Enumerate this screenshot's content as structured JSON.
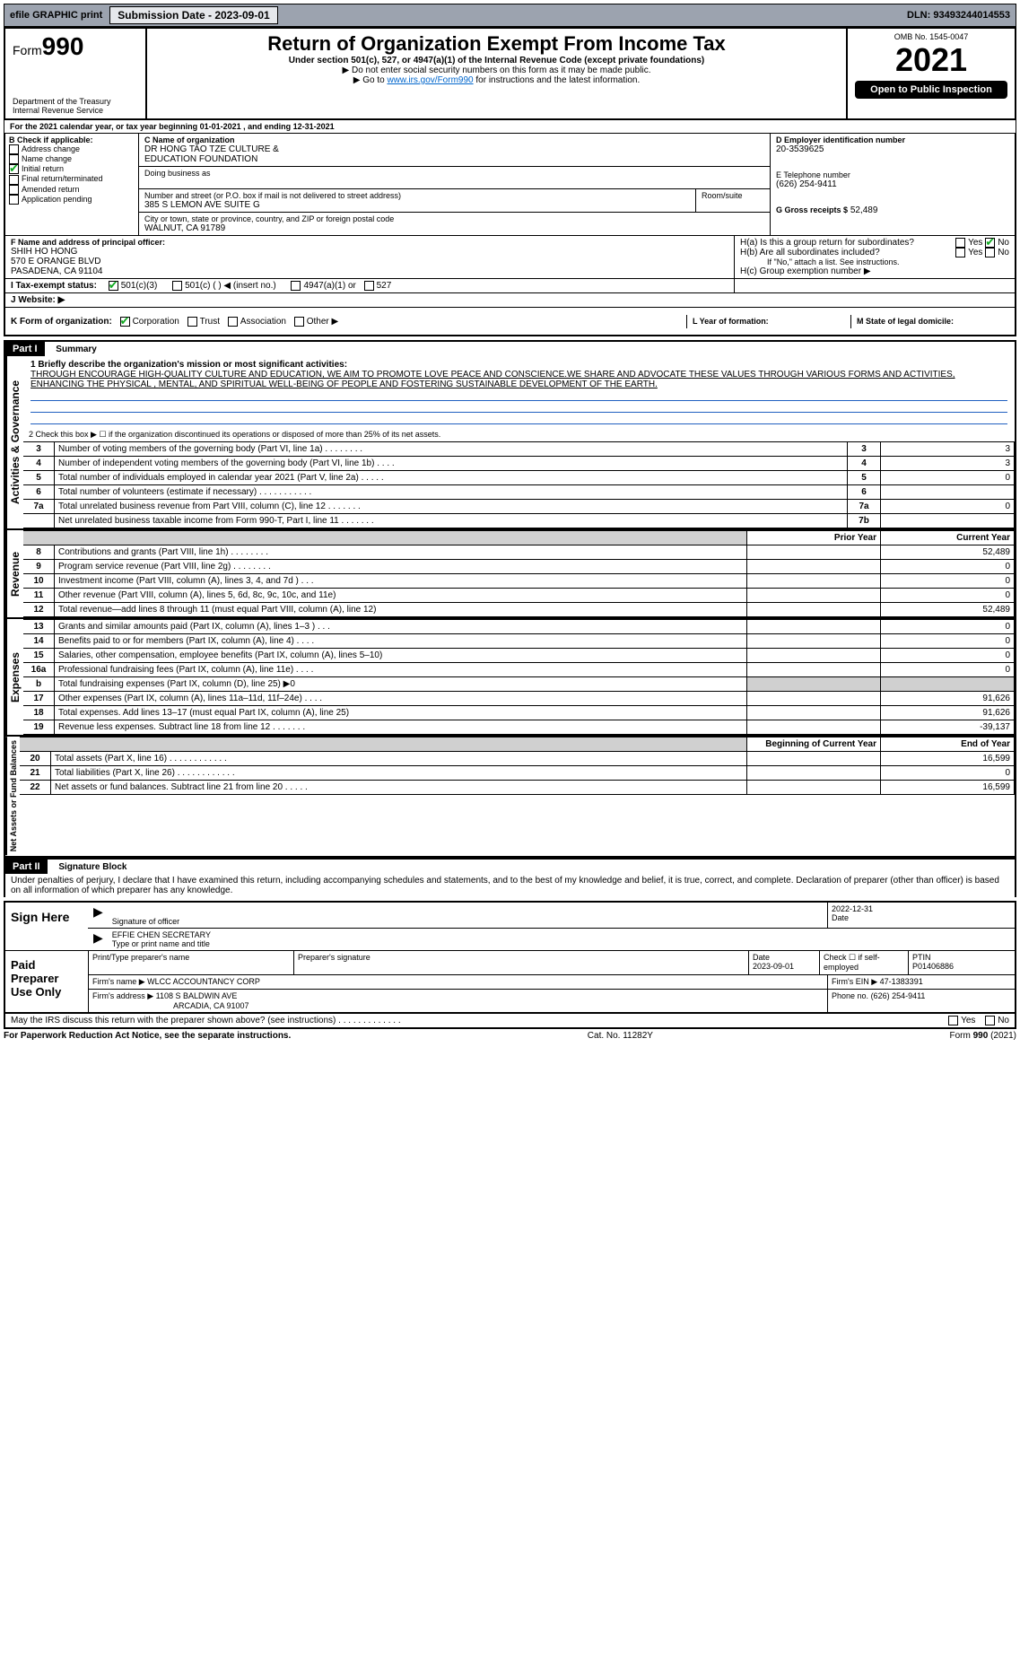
{
  "topbar": {
    "efile": "efile GRAPHIC print",
    "submission_label": "Submission Date - 2023-09-01",
    "dln": "DLN: 93493244014553"
  },
  "header": {
    "form_label": "Form",
    "form_no": "990",
    "dept1": "Department of the Treasury",
    "dept2": "Internal Revenue Service",
    "title": "Return of Organization Exempt From Income Tax",
    "sub1": "Under section 501(c), 527, or 4947(a)(1) of the Internal Revenue Code (except private foundations)",
    "sub2": "▶ Do not enter social security numbers on this form as it may be made public.",
    "sub3_pre": "▶ Go to ",
    "sub3_link": "www.irs.gov/Form990",
    "sub3_post": " for instructions and the latest information.",
    "omb": "OMB No. 1545-0047",
    "year": "2021",
    "open": "Open to Public Inspection"
  },
  "periodA": "For the 2021 calendar year, or tax year beginning 01-01-2021    , and ending 12-31-2021",
  "boxB": {
    "label": "B Check if applicable:",
    "items": [
      "Address change",
      "Name change",
      "Initial return",
      "Final return/terminated",
      "Amended return",
      "Application pending"
    ],
    "checked_index": 2
  },
  "boxC": {
    "name_label": "C Name of organization",
    "name1": "DR HONG TAO TZE CULTURE &",
    "name2": "EDUCATION FOUNDATION",
    "dba_label": "Doing business as",
    "addr_label": "Number and street (or P.O. box if mail is not delivered to street address)",
    "room_label": "Room/suite",
    "addr": "385 S LEMON AVE SUITE G",
    "city_label": "City or town, state or province, country, and ZIP or foreign postal code",
    "city": "WALNUT, CA  91789"
  },
  "boxD": {
    "label": "D Employer identification number",
    "value": "20-3539625"
  },
  "boxE": {
    "label": "E Telephone number",
    "value": "(626) 254-9411"
  },
  "boxG": {
    "label": "G Gross receipts $",
    "value": "52,489"
  },
  "boxF": {
    "label": "F  Name and address of principal officer:",
    "line1": "SHIH HO HONG",
    "line2": "570 E ORANGE BLVD",
    "line3": "PASADENA, CA  91104"
  },
  "boxH": {
    "a_label": "H(a)  Is this a group return for subordinates?",
    "b_label": "H(b)  Are all subordinates included?",
    "b_note": "If \"No,\" attach a list. See instructions.",
    "c_label": "H(c)  Group exemption number ▶",
    "yes": "Yes",
    "no": "No"
  },
  "boxI": {
    "label": "I   Tax-exempt status:",
    "opts": [
      "501(c)(3)",
      "501(c) (  ) ◀ (insert no.)",
      "4947(a)(1) or",
      "527"
    ]
  },
  "boxJ": {
    "label": "J   Website: ▶"
  },
  "boxK": {
    "label": "K Form of organization:",
    "opts": [
      "Corporation",
      "Trust",
      "Association",
      "Other ▶"
    ]
  },
  "boxL": {
    "label": "L Year of formation:"
  },
  "boxM": {
    "label": "M State of legal domicile:"
  },
  "part1": {
    "header": "Part I",
    "title": "Summary",
    "line1_label": "1  Briefly describe the organization's mission or most significant activities:",
    "mission": "THROUGH ENCOURAGE HIGH-QUALITY CULTURE AND EDUCATION, WE AIM TO PROMOTE LOVE PEACE AND CONSCIENCE.WE SHARE AND ADVOCATE THESE VALUES THROUGH VARIOUS FORMS AND ACTIVITIES, ENHANCING THE PHYSICAL , MENTAL, AND SPIRITUAL WELL-BEING OF PEOPLE AND FOSTERING SUSTAINABLE DEVELOPMENT OF THE EARTH.",
    "line2": "2   Check this box ▶ ☐  if the organization discontinued its operations or disposed of more than 25% of its net assets.",
    "govlabel": "Activities & Governance",
    "rows_gov": [
      {
        "n": "3",
        "t": "Number of voting members of the governing body (Part VI, line 1a)   .    .    .    .    .    .    .    .",
        "box": "3",
        "v": "3"
      },
      {
        "n": "4",
        "t": "Number of independent voting members of the governing body (Part VI, line 1b)    .    .    .    .",
        "box": "4",
        "v": "3"
      },
      {
        "n": "5",
        "t": "Total number of individuals employed in calendar year 2021 (Part V, line 2a)   .    .    .    .    .",
        "box": "5",
        "v": "0"
      },
      {
        "n": "6",
        "t": "Total number of volunteers (estimate if necessary)    .    .    .    .    .    .    .    .    .    .    .",
        "box": "6",
        "v": ""
      },
      {
        "n": "7a",
        "t": "Total unrelated business revenue from Part VIII, column (C), line 12   .    .    .    .    .    .    .",
        "box": "7a",
        "v": "0"
      },
      {
        "n": "",
        "t": "Net unrelated business taxable income from Form 990-T, Part I, line 11   .    .    .    .    .    .    .",
        "box": "7b",
        "v": ""
      }
    ],
    "col_prior": "Prior Year",
    "col_current": "Current Year",
    "revlabel": "Revenue",
    "rows_rev": [
      {
        "n": "8",
        "t": "Contributions and grants (Part VIII, line 1h)   .    .    .    .    .    .    .    .",
        "p": "",
        "c": "52,489"
      },
      {
        "n": "9",
        "t": "Program service revenue (Part VIII, line 2g)   .    .    .    .    .    .    .    .",
        "p": "",
        "c": "0"
      },
      {
        "n": "10",
        "t": "Investment income (Part VIII, column (A), lines 3, 4, and 7d )    .    .    .",
        "p": "",
        "c": "0"
      },
      {
        "n": "11",
        "t": "Other revenue (Part VIII, column (A), lines 5, 6d, 8c, 9c, 10c, and 11e)",
        "p": "",
        "c": "0"
      },
      {
        "n": "12",
        "t": "Total revenue—add lines 8 through 11 (must equal Part VIII, column (A), line 12)",
        "p": "",
        "c": "52,489"
      }
    ],
    "explabel": "Expenses",
    "rows_exp": [
      {
        "n": "13",
        "t": "Grants and similar amounts paid (Part IX, column (A), lines 1–3 )   .    .    .",
        "p": "",
        "c": "0"
      },
      {
        "n": "14",
        "t": "Benefits paid to or for members (Part IX, column (A), line 4)   .    .    .    .",
        "p": "",
        "c": "0"
      },
      {
        "n": "15",
        "t": "Salaries, other compensation, employee benefits (Part IX, column (A), lines 5–10)",
        "p": "",
        "c": "0"
      },
      {
        "n": "16a",
        "t": "Professional fundraising fees (Part IX, column (A), line 11e)    .    .    .    .",
        "p": "",
        "c": "0"
      },
      {
        "n": "b",
        "t": "Total fundraising expenses (Part IX, column (D), line 25) ▶0",
        "p": "shade",
        "c": "shade"
      },
      {
        "n": "17",
        "t": "Other expenses (Part IX, column (A), lines 11a–11d, 11f–24e)    .    .    .    .",
        "p": "",
        "c": "91,626"
      },
      {
        "n": "18",
        "t": "Total expenses. Add lines 13–17 (must equal Part IX, column (A), line 25)",
        "p": "",
        "c": "91,626"
      },
      {
        "n": "19",
        "t": "Revenue less expenses. Subtract line 18 from line 12   .    .    .    .    .    .    .",
        "p": "",
        "c": "-39,137"
      }
    ],
    "netlabel": "Net Assets or Fund Balances",
    "col_begin": "Beginning of Current Year",
    "col_end": "End of Year",
    "rows_net": [
      {
        "n": "20",
        "t": "Total assets (Part X, line 16)   .    .    .    .    .    .    .    .    .    .    .    .",
        "p": "",
        "c": "16,599"
      },
      {
        "n": "21",
        "t": "Total liabilities (Part X, line 26)   .    .    .    .    .    .    .    .    .    .    .    .",
        "p": "",
        "c": "0"
      },
      {
        "n": "22",
        "t": "Net assets or fund balances. Subtract line 21 from line 20    .    .    .    .    .",
        "p": "",
        "c": "16,599"
      }
    ]
  },
  "part2": {
    "header": "Part II",
    "title": "Signature Block",
    "declaration": "Under penalties of perjury, I declare that I have examined this return, including accompanying schedules and statements, and to the best of my knowledge and belief, it is true, correct, and complete. Declaration of preparer (other than officer) is based on all information of which preparer has any knowledge.",
    "sign_here": "Sign Here",
    "sig_officer": "Signature of officer",
    "sig_date": "Date",
    "sig_date_val": "2022-12-31",
    "typed_name": "EFFIE CHEN  SECRETARY",
    "typed_label": "Type or print name and title",
    "paid": "Paid Preparer Use Only",
    "prep_name_label": "Print/Type preparer's name",
    "prep_sig_label": "Preparer's signature",
    "prep_date_label": "Date",
    "prep_date": "2023-09-01",
    "self_emp": "Check ☐ if self-employed",
    "ptin_label": "PTIN",
    "ptin": "P01406886",
    "firm_name_label": "Firm's name   ▶",
    "firm_name": "WLCC ACCOUNTANCY CORP",
    "firm_ein_label": "Firm's EIN ▶",
    "firm_ein": "47-1383391",
    "firm_addr_label": "Firm's address ▶",
    "firm_addr1": "1108 S BALDWIN AVE",
    "firm_addr2": "ARCADIA, CA  91007",
    "firm_phone_label": "Phone no.",
    "firm_phone": "(626) 254-9411",
    "discuss": "May the IRS discuss this return with the preparer shown above? (see instructions)    .    .    .    .    .    .    .    .    .    .    .    .    .",
    "yes": "Yes",
    "no": "No"
  },
  "footer": {
    "left": "For Paperwork Reduction Act Notice, see the separate instructions.",
    "mid": "Cat. No. 11282Y",
    "right": "Form 990 (2021)"
  }
}
